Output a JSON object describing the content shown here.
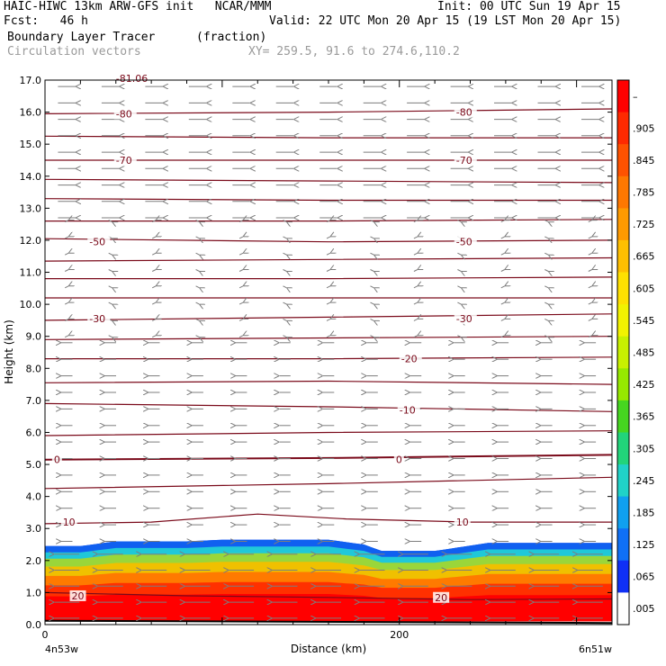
{
  "header": {
    "title": "HAIC-HIWC 13km ARW-GFS init   NCAR/MMM",
    "init": "Init: 00 UTC Sun 19 Apr 15",
    "fcst": "Fcst:   46 h",
    "valid": "Valid: 22 UTC Mon 20 Apr 15 (19 LST Mon 20 Apr 15)",
    "field1": "Boundary Layer Tracer",
    "field1_units": "(fraction)",
    "field2": "Circulation vectors",
    "xy": "XY= 259.5, 91.6 to 274.6,110.2"
  },
  "chart_data": {
    "type": "heatmap",
    "title": "Boundary Layer Tracer (fraction)",
    "xlabel": "Distance (km)",
    "ylabel": "Height (km)",
    "xlim": [
      0,
      320
    ],
    "ylim": [
      0,
      17
    ],
    "x_tick_labels": [
      {
        "value": 0,
        "label": "0"
      },
      {
        "value": 200,
        "label": "200"
      }
    ],
    "x_endpoint_labels": [
      "4n53w",
      "6n51w"
    ],
    "y_ticks": [
      0.0,
      1.0,
      2.0,
      3.0,
      4.0,
      5.0,
      6.0,
      7.0,
      8.0,
      9.0,
      10.0,
      11.0,
      12.0,
      13.0,
      14.0,
      15.0,
      16.0,
      17.0
    ],
    "y_tick_labels": [
      "0.0",
      "1.0",
      "2.0",
      "3.0",
      "4.0",
      "5.0",
      "6.0",
      "7.0",
      "8.0",
      "9.0",
      "10.0",
      "11.0",
      "12.0",
      "13.0",
      "14.0",
      "15.0",
      "16.0",
      "17.0"
    ],
    "colorbar": {
      "labels": [
        "–",
        ".905",
        ".845",
        ".785",
        ".725",
        ".665",
        ".605",
        ".545",
        ".485",
        ".425",
        ".365",
        ".305",
        ".245",
        ".185",
        ".125",
        ".065",
        ".005"
      ],
      "colors": [
        "#ff0000",
        "#ff2a00",
        "#ff5200",
        "#ff7800",
        "#ff9a00",
        "#ffbf00",
        "#ffe000",
        "#f2f200",
        "#c8f000",
        "#96e800",
        "#46d620",
        "#22d47a",
        "#20d2c8",
        "#10a0f0",
        "#1070f5",
        "#1030f5",
        "#ffffff"
      ]
    },
    "tracer_layer": {
      "top_km": [
        {
          "x": 0,
          "top": 2.45
        },
        {
          "x": 20,
          "top": 2.45
        },
        {
          "x": 40,
          "top": 2.6
        },
        {
          "x": 80,
          "top": 2.6
        },
        {
          "x": 100,
          "top": 2.65
        },
        {
          "x": 160,
          "top": 2.65
        },
        {
          "x": 180,
          "top": 2.5
        },
        {
          "x": 190,
          "top": 2.3
        },
        {
          "x": 220,
          "top": 2.3
        },
        {
          "x": 250,
          "top": 2.55
        },
        {
          "x": 320,
          "top": 2.55
        }
      ],
      "levels": [
        {
          "height_km": 0.0,
          "color": "#ff0000"
        },
        {
          "height_km": 0.9,
          "color": "#ff3000"
        },
        {
          "height_km": 1.25,
          "color": "#ff7a00"
        },
        {
          "height_km": 1.55,
          "color": "#f0c000"
        },
        {
          "height_km": 1.85,
          "color": "#9ad63a"
        },
        {
          "height_km": 2.1,
          "color": "#20c8d8"
        },
        {
          "height_km": 2.3,
          "color": "#1060f0"
        },
        {
          "height_km": 2.5,
          "color": "#1030f5"
        }
      ]
    },
    "contours": [
      {
        "level": "20",
        "label_positions": [
          {
            "x": 15,
            "y": 0.9
          },
          {
            "x": 220,
            "y": 0.85
          }
        ],
        "points": [
          [
            0,
            1.0
          ],
          [
            80,
            0.9
          ],
          [
            160,
            0.85
          ],
          [
            240,
            0.78
          ],
          [
            320,
            0.8
          ]
        ]
      },
      {
        "level": "10",
        "label_positions": [
          {
            "x": 10,
            "y": 3.2
          },
          {
            "x": 232,
            "y": 3.2
          }
        ],
        "points": [
          [
            0,
            3.15
          ],
          [
            60,
            3.2
          ],
          [
            120,
            3.45
          ],
          [
            170,
            3.3
          ],
          [
            240,
            3.2
          ],
          [
            320,
            3.2
          ]
        ]
      },
      {
        "level": "",
        "points": [
          [
            0,
            4.25
          ],
          [
            160,
            4.4
          ],
          [
            320,
            4.6
          ]
        ]
      },
      {
        "level": "0",
        "label_positions": [
          {
            "x": 5,
            "y": 5.15
          },
          {
            "x": 198,
            "y": 5.15
          }
        ],
        "points": [
          [
            0,
            5.15
          ],
          [
            160,
            5.2
          ],
          [
            320,
            5.3
          ]
        ]
      },
      {
        "level": "",
        "points": [
          [
            0,
            5.9
          ],
          [
            160,
            6.0
          ],
          [
            320,
            6.05
          ]
        ]
      },
      {
        "level": "-10",
        "label_positions": [
          {
            "x": 200,
            "y": 6.7
          }
        ],
        "points": [
          [
            0,
            6.9
          ],
          [
            160,
            6.8
          ],
          [
            320,
            6.65
          ]
        ]
      },
      {
        "level": "",
        "points": [
          [
            0,
            7.55
          ],
          [
            160,
            7.6
          ],
          [
            320,
            7.5
          ]
        ]
      },
      {
        "level": "-20",
        "label_positions": [
          {
            "x": 201,
            "y": 8.3
          }
        ],
        "points": [
          [
            0,
            8.3
          ],
          [
            160,
            8.3
          ],
          [
            320,
            8.35
          ]
        ]
      },
      {
        "level": "",
        "points": [
          [
            0,
            8.9
          ],
          [
            160,
            8.95
          ],
          [
            320,
            9.0
          ]
        ]
      },
      {
        "level": "-30",
        "label_positions": [
          {
            "x": 25,
            "y": 9.55
          },
          {
            "x": 232,
            "y": 9.55
          }
        ],
        "points": [
          [
            0,
            9.5
          ],
          [
            160,
            9.6
          ],
          [
            320,
            9.7
          ]
        ]
      },
      {
        "level": "",
        "points": [
          [
            0,
            10.2
          ],
          [
            160,
            10.2
          ],
          [
            320,
            10.2
          ]
        ]
      },
      {
        "level": "",
        "points": [
          [
            0,
            10.8
          ],
          [
            160,
            10.8
          ],
          [
            320,
            10.85
          ]
        ]
      },
      {
        "level": "",
        "points": [
          [
            0,
            11.35
          ],
          [
            160,
            11.4
          ],
          [
            320,
            11.45
          ]
        ]
      },
      {
        "level": "-50",
        "label_positions": [
          {
            "x": 25,
            "y": 11.95
          },
          {
            "x": 232,
            "y": 11.95
          }
        ],
        "points": [
          [
            0,
            12.05
          ],
          [
            160,
            11.95
          ],
          [
            320,
            12.0
          ]
        ]
      },
      {
        "level": "",
        "points": [
          [
            0,
            12.6
          ],
          [
            160,
            12.6
          ],
          [
            320,
            12.65
          ]
        ]
      },
      {
        "level": "",
        "points": [
          [
            0,
            13.3
          ],
          [
            160,
            13.25
          ],
          [
            320,
            13.25
          ]
        ]
      },
      {
        "level": "",
        "points": [
          [
            0,
            13.9
          ],
          [
            160,
            13.85
          ],
          [
            320,
            13.8
          ]
        ]
      },
      {
        "level": "-70",
        "label_positions": [
          {
            "x": 40,
            "y": 14.5
          },
          {
            "x": 232,
            "y": 14.5
          }
        ],
        "points": [
          [
            0,
            14.5
          ],
          [
            160,
            14.5
          ],
          [
            320,
            14.5
          ]
        ]
      },
      {
        "level": "",
        "points": [
          [
            0,
            15.25
          ],
          [
            160,
            15.2
          ],
          [
            320,
            15.2
          ]
        ]
      },
      {
        "level": "-80",
        "label_positions": [
          {
            "x": 40,
            "y": 15.95
          },
          {
            "x": 232,
            "y": 16.0
          }
        ],
        "points": [
          [
            0,
            15.95
          ],
          [
            160,
            16.0
          ],
          [
            320,
            16.1
          ]
        ]
      }
    ],
    "top_contour_label": "-81.06",
    "vectors": {
      "description_units": "arrow direction only",
      "bands": [
        {
          "y_from": 0.2,
          "y_to": 2.2,
          "dir": "west",
          "length": 1.0
        },
        {
          "y_from": 2.6,
          "y_to": 8.8,
          "dir": "west",
          "length": 0.45
        },
        {
          "y_from": 9.0,
          "y_to": 12.6,
          "dir": "calm",
          "length": 0.25
        },
        {
          "y_from": 12.7,
          "y_to": 16.8,
          "dir": "east",
          "length": 0.7
        }
      ]
    }
  }
}
